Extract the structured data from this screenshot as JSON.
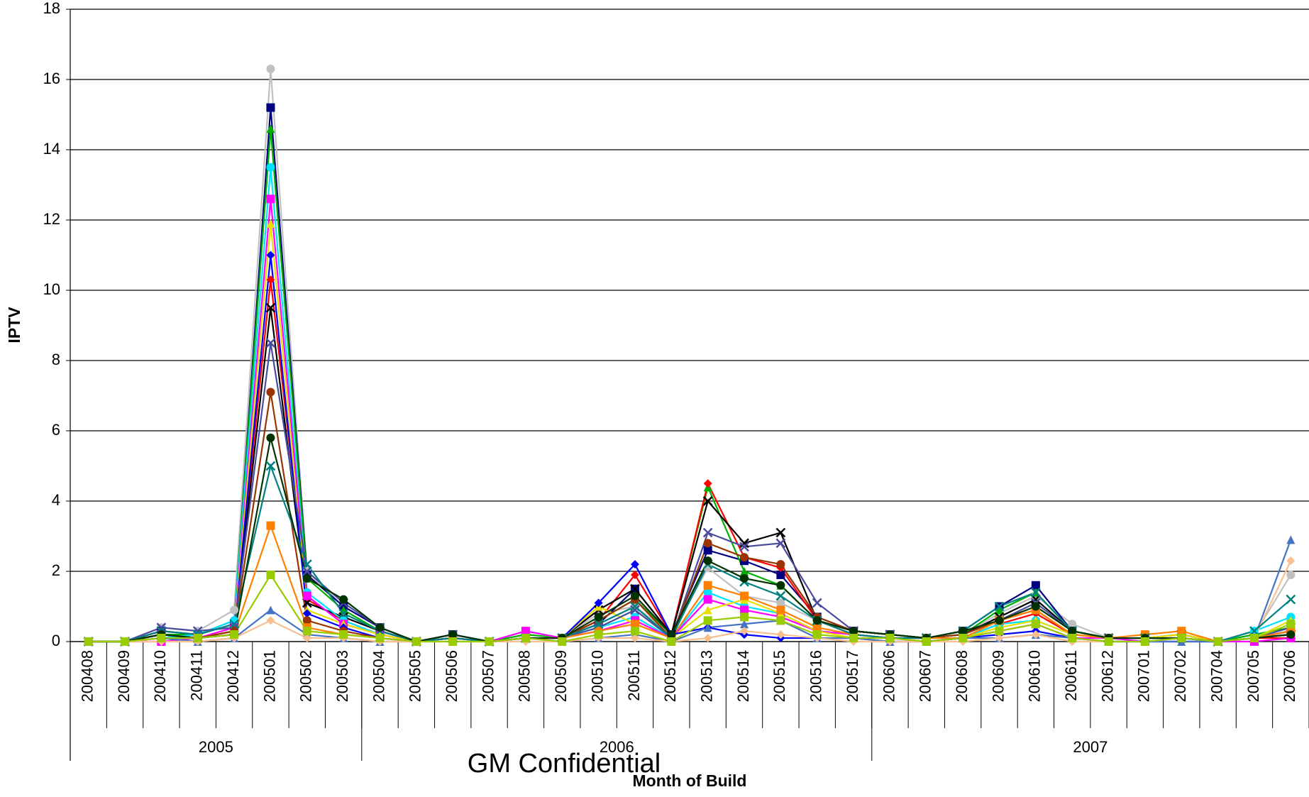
{
  "chart_data": {
    "type": "line",
    "ylabel": "IPTV",
    "xlabel": "Month of Build",
    "watermark": "GM Confidential",
    "categories": [
      "200408",
      "200409",
      "200410",
      "200411",
      "200412",
      "200501",
      "200502",
      "200503",
      "200504",
      "200505",
      "200506",
      "200507",
      "200508",
      "200509",
      "200510",
      "200511",
      "200512",
      "200513",
      "200514",
      "200515",
      "200516",
      "200517",
      "200606",
      "200607",
      "200608",
      "200609",
      "200610",
      "200611",
      "200612",
      "200701",
      "200702",
      "200704",
      "200705",
      "200706"
    ],
    "groups": [
      {
        "label": "2005",
        "count": 8
      },
      {
        "label": "2006",
        "count": 14
      },
      {
        "label": "2007",
        "count": 12
      }
    ],
    "ylim": [
      0,
      18
    ],
    "yticks": [
      0,
      2,
      4,
      6,
      8,
      10,
      12,
      14,
      16,
      18
    ],
    "grid": true,
    "series": [
      {
        "color": "#c0c0c0",
        "values": [
          0,
          0,
          0.4,
          0.3,
          0.9,
          16.3,
          2.0,
          1.0,
          0.4,
          0,
          0.2,
          0,
          0.2,
          0.1,
          0.8,
          1.0,
          0.2,
          2.1,
          1.3,
          1.1,
          0.6,
          0.3,
          0.2,
          0.1,
          0.2,
          0.8,
          1.3,
          0.5,
          0.1,
          0.1,
          0.2,
          0,
          0.2,
          1.9
        ]
      },
      {
        "color": "#000080",
        "values": [
          0,
          0,
          0.3,
          0.2,
          0.5,
          15.2,
          1.9,
          1.0,
          0.4,
          0,
          0.2,
          0,
          0.1,
          0.1,
          0.5,
          1.5,
          0.2,
          2.6,
          2.3,
          1.9,
          0.7,
          0.3,
          0.2,
          0.1,
          0.3,
          1.0,
          1.6,
          0.3,
          0.1,
          0.1,
          0.1,
          0,
          0.1,
          0.3
        ]
      },
      {
        "color": "#00b000",
        "values": [
          0,
          0,
          0.2,
          0.2,
          0.6,
          14.6,
          1.8,
          0.9,
          0.3,
          0,
          0.1,
          0,
          0.2,
          0.1,
          0.6,
          1.2,
          0.2,
          4.4,
          2.0,
          1.6,
          0.6,
          0.3,
          0.2,
          0.1,
          0.2,
          0.9,
          1.4,
          0.3,
          0.1,
          0.1,
          0.1,
          0,
          0.2,
          0.4
        ]
      },
      {
        "color": "#ff0000",
        "values": [
          0,
          0,
          0.2,
          0.1,
          0.3,
          10.3,
          1.2,
          0.6,
          0.2,
          0,
          0.1,
          0,
          0.1,
          0.1,
          0.6,
          1.9,
          0.2,
          4.5,
          2.4,
          2.1,
          0.6,
          0.2,
          0.1,
          0.1,
          0.1,
          0.5,
          0.8,
          0.2,
          0.1,
          0.1,
          0.1,
          0,
          0.1,
          0.1
        ]
      },
      {
        "color": "#000000",
        "values": [
          0,
          0,
          0.2,
          0.1,
          0.3,
          9.5,
          1.1,
          0.7,
          0.3,
          0,
          0.1,
          0,
          0.1,
          0.1,
          0.9,
          1.5,
          0.2,
          4.0,
          2.8,
          3.1,
          0.6,
          0.3,
          0.2,
          0.1,
          0.2,
          0.7,
          1.2,
          0.3,
          0.1,
          0.1,
          0.2,
          0,
          0.1,
          0.2
        ]
      },
      {
        "color": "#00e0ff",
        "values": [
          0,
          0,
          0.1,
          0.2,
          0.6,
          13.5,
          1.4,
          0.6,
          0.2,
          0,
          0.1,
          0,
          0.3,
          0.1,
          0.4,
          0.7,
          0.1,
          1.4,
          1.0,
          0.8,
          0.3,
          0.2,
          0.1,
          0.1,
          0.1,
          0.5,
          0.6,
          0.2,
          0.1,
          0.1,
          0.1,
          0,
          0.3,
          0.7
        ]
      },
      {
        "color": "#ff00ff",
        "values": [
          0,
          0,
          0,
          0.1,
          0.4,
          12.6,
          1.3,
          0.5,
          0.2,
          0,
          0.1,
          0,
          0.3,
          0.1,
          0.3,
          0.6,
          0.1,
          1.2,
          0.9,
          0.7,
          0.3,
          0.2,
          0.1,
          0,
          0.1,
          0.3,
          0.5,
          0.1,
          0.1,
          0,
          0.1,
          0,
          0,
          0.1
        ]
      },
      {
        "color": "#e8e000",
        "values": [
          0,
          0,
          0.1,
          0.1,
          0.3,
          11.9,
          0.9,
          0.5,
          0.2,
          0,
          0.1,
          0,
          0.1,
          0.1,
          1.0,
          0.5,
          0.1,
          0.9,
          1.2,
          0.8,
          0.3,
          0.1,
          0.1,
          0,
          0.1,
          0.4,
          0.6,
          0.2,
          0.1,
          0.1,
          0.2,
          0,
          0.1,
          0.6
        ]
      },
      {
        "color": "#0000ff",
        "values": [
          0,
          0,
          0.1,
          0.1,
          0.2,
          11.0,
          0.8,
          0.4,
          0.1,
          0,
          0.1,
          0,
          0.1,
          0.1,
          1.1,
          2.2,
          0.2,
          0.4,
          0.2,
          0.1,
          0.1,
          0.1,
          0,
          0,
          0.1,
          0.2,
          0.3,
          0.1,
          0,
          0,
          0,
          0,
          0.1,
          0.3
        ]
      },
      {
        "color": "#4b4b9e",
        "values": [
          0,
          0,
          0.4,
          0.3,
          0.4,
          8.5,
          2.0,
          1.1,
          0.4,
          0,
          0.2,
          0,
          0.1,
          0.1,
          0.4,
          0.9,
          0.1,
          3.1,
          2.7,
          2.8,
          1.1,
          0.3,
          0.2,
          0.1,
          0.2,
          0.6,
          1.1,
          0.3,
          0.1,
          0.1,
          0.1,
          0,
          0.1,
          0.4
        ]
      },
      {
        "color": "#993300",
        "values": [
          0,
          0,
          0.2,
          0.1,
          0.3,
          7.1,
          0.6,
          0.3,
          0.1,
          0,
          0.1,
          0,
          0.1,
          0.1,
          0.6,
          1.2,
          0.1,
          2.8,
          2.4,
          2.2,
          0.7,
          0.3,
          0.2,
          0.1,
          0.2,
          0.6,
          0.9,
          0.2,
          0.1,
          0.1,
          0.1,
          0,
          0.1,
          0.2
        ]
      },
      {
        "color": "#ff8000",
        "values": [
          0,
          0,
          0.1,
          0.1,
          0.2,
          3.3,
          0.4,
          0.2,
          0.1,
          0,
          0.1,
          0,
          0.1,
          0.1,
          0.3,
          0.5,
          0.1,
          1.6,
          1.3,
          0.9,
          0.4,
          0.2,
          0.1,
          0.1,
          0.1,
          0.6,
          0.9,
          0.2,
          0.1,
          0.2,
          0.3,
          0,
          0.1,
          0.3
        ]
      },
      {
        "color": "#4472c4",
        "values": [
          0,
          0,
          0.1,
          0,
          0.1,
          0.9,
          0.2,
          0.1,
          0,
          0,
          0.1,
          0,
          0.1,
          0,
          0.1,
          0.2,
          0,
          0.4,
          0.5,
          0.6,
          0.1,
          0.1,
          0,
          0,
          0.1,
          0.1,
          0.2,
          0.1,
          0,
          0,
          0,
          0,
          0.1,
          2.9
        ]
      },
      {
        "color": "#fabf8f",
        "values": [
          0,
          0,
          0,
          0,
          0.1,
          0.6,
          0.1,
          0.1,
          0,
          0,
          0,
          0,
          0,
          0,
          0.1,
          0.1,
          0,
          0.1,
          0.3,
          0.2,
          0.1,
          0,
          0,
          0,
          0,
          0.1,
          0.2,
          0,
          0,
          0,
          0.1,
          0,
          0.1,
          2.3
        ]
      },
      {
        "color": "#008080",
        "values": [
          0,
          0,
          0.3,
          0.2,
          0.5,
          5.0,
          2.2,
          0.8,
          0.3,
          0,
          0.1,
          0,
          0.1,
          0.1,
          0.5,
          1.0,
          0.1,
          2.2,
          1.7,
          1.3,
          0.6,
          0.2,
          0.1,
          0.1,
          0.3,
          1.0,
          1.4,
          0.3,
          0.1,
          0.1,
          0.1,
          0,
          0.3,
          1.2
        ]
      },
      {
        "color": "#003300",
        "values": [
          0,
          0,
          0.2,
          0.1,
          0.2,
          5.8,
          1.8,
          1.2,
          0.4,
          0,
          0.2,
          0,
          0.1,
          0.1,
          0.7,
          1.3,
          0.2,
          2.3,
          1.8,
          1.6,
          0.6,
          0.3,
          0.2,
          0.1,
          0.3,
          0.6,
          1.0,
          0.3,
          0.1,
          0.1,
          0.1,
          0,
          0.1,
          0.2
        ]
      },
      {
        "color": "#99cc00",
        "values": [
          0,
          0,
          0.1,
          0.1,
          0.2,
          1.9,
          0.3,
          0.2,
          0.1,
          0,
          0,
          0,
          0.1,
          0,
          0.2,
          0.3,
          0,
          0.6,
          0.7,
          0.6,
          0.2,
          0.1,
          0.1,
          0,
          0.1,
          0.3,
          0.5,
          0.1,
          0,
          0,
          0.1,
          0,
          0.1,
          0.5
        ]
      }
    ]
  }
}
